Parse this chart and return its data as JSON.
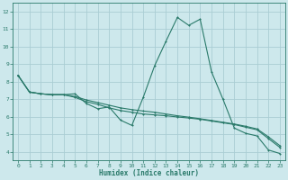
{
  "xlabel": "Humidex (Indice chaleur)",
  "bg_color": "#cde8ec",
  "grid_color": "#aacdd4",
  "line_color": "#2a7a6a",
  "xlim": [
    -0.5,
    23.5
  ],
  "ylim": [
    3.5,
    12.5
  ],
  "xticks": [
    0,
    1,
    2,
    3,
    4,
    5,
    6,
    7,
    8,
    9,
    10,
    11,
    12,
    13,
    14,
    15,
    16,
    17,
    18,
    19,
    20,
    21,
    22,
    23
  ],
  "yticks": [
    4,
    5,
    6,
    7,
    8,
    9,
    10,
    11,
    12
  ],
  "series1_x": [
    0,
    1,
    2,
    3,
    4,
    5,
    6,
    7,
    8,
    9,
    10,
    11,
    12,
    13,
    14,
    15,
    16,
    17,
    18,
    19,
    20,
    21,
    22,
    23
  ],
  "series1_y": [
    8.35,
    7.4,
    7.3,
    7.25,
    7.25,
    7.3,
    6.75,
    6.45,
    6.55,
    5.8,
    5.5,
    7.1,
    8.9,
    10.3,
    11.65,
    11.2,
    11.55,
    8.55,
    7.0,
    5.35,
    5.05,
    4.9,
    4.1,
    3.9
  ],
  "series2_x": [
    0,
    1,
    2,
    3,
    4,
    5,
    6,
    7,
    8,
    9,
    10,
    11,
    12,
    13,
    14,
    15,
    16,
    17,
    18,
    19,
    20,
    21,
    22,
    23
  ],
  "series2_y": [
    8.35,
    7.4,
    7.3,
    7.25,
    7.25,
    7.1,
    6.85,
    6.7,
    6.5,
    6.35,
    6.25,
    6.15,
    6.1,
    6.05,
    5.98,
    5.92,
    5.85,
    5.75,
    5.65,
    5.55,
    5.4,
    5.25,
    4.75,
    4.25
  ],
  "series3_x": [
    0,
    1,
    2,
    3,
    4,
    5,
    6,
    7,
    8,
    9,
    10,
    11,
    12,
    13,
    14,
    15,
    16,
    17,
    18,
    19,
    20,
    21,
    22,
    23
  ],
  "series3_y": [
    8.35,
    7.4,
    7.3,
    7.25,
    7.25,
    7.15,
    6.95,
    6.8,
    6.65,
    6.5,
    6.4,
    6.32,
    6.25,
    6.15,
    6.05,
    5.97,
    5.88,
    5.78,
    5.68,
    5.58,
    5.45,
    5.3,
    4.85,
    4.35
  ]
}
